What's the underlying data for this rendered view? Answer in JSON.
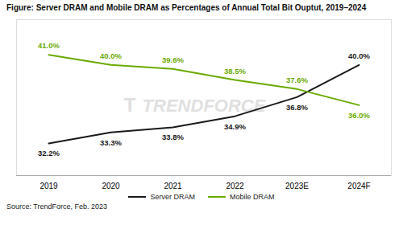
{
  "chart_data": {
    "type": "line",
    "title": "Figure: Server DRAM and Mobile DRAM as Percentages of Annual Total Bit Ouptut, 2019–2024",
    "source": "Source: TrendForce, Feb.  2023",
    "categories": [
      "2019",
      "2020",
      "2021",
      "2022",
      "2023E",
      "2024F"
    ],
    "series": [
      {
        "name": "Server DRAM",
        "color": "#1a1a1a",
        "values": [
          32.2,
          33.3,
          33.8,
          34.9,
          36.8,
          40.0
        ],
        "value_labels": [
          "32.2%",
          "33.3%",
          "33.8%",
          "34.9%",
          "36.8%",
          "40.0%"
        ]
      },
      {
        "name": "Mobile DRAM",
        "color": "#6aaa00",
        "values": [
          41.0,
          40.0,
          39.6,
          38.5,
          37.6,
          36.0
        ],
        "value_labels": [
          "41.0%",
          "40.0%",
          "39.6%",
          "38.5%",
          "37.6%",
          "36.0%"
        ]
      }
    ],
    "ylim": [
      29.0,
      44.5
    ],
    "data_labels": true,
    "tick_labels": "x",
    "legend": "bottom",
    "annotations": [
      "TRENDFORCE",
      "T"
    ]
  }
}
